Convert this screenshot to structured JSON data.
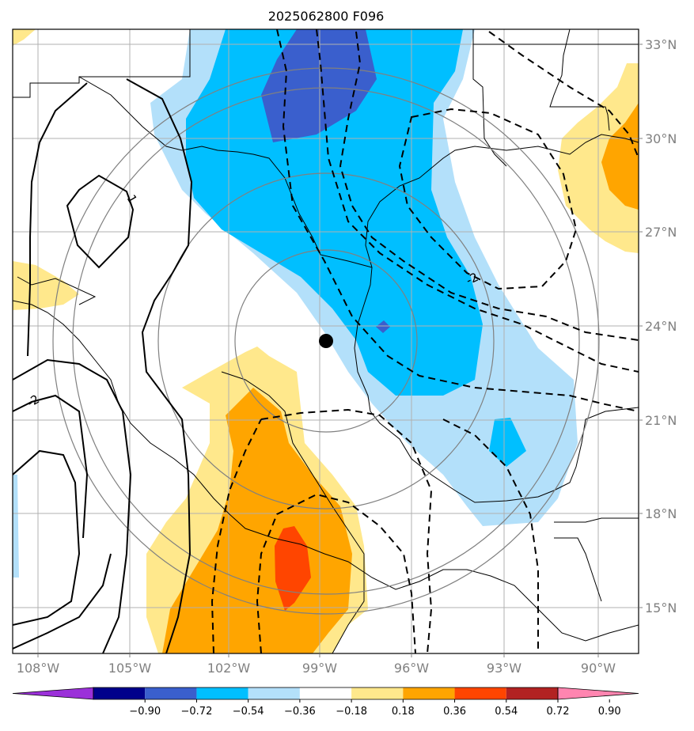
{
  "title": "2025062800 F096",
  "map": {
    "lat_labels": [
      "33°N",
      "30°N",
      "27°N",
      "24°N",
      "21°N",
      "18°N",
      "15°N"
    ],
    "lon_labels": [
      "108°W",
      "105°W",
      "102°W",
      "99°W",
      "96°W",
      "93°W",
      "90°W"
    ],
    "contour_labels": [
      "1",
      "-2",
      "-2"
    ],
    "center_marker": "storm-center-dot"
  },
  "colorbar": {
    "tick_labels": [
      "−0.90",
      "−0.72",
      "−0.54",
      "−0.36",
      "−0.18",
      "0.18",
      "0.36",
      "0.54",
      "0.72",
      "0.90"
    ],
    "colors": [
      "#9b30d9",
      "#00008b",
      "#3a5fcd",
      "#00bfff",
      "#b3e0fa",
      "#ffffff",
      "#ffe88c",
      "#ffa500",
      "#ff4500",
      "#b22222",
      "#ff85b0"
    ]
  },
  "colors": {
    "contour_positive": "#000000",
    "contour_negative": "#000000",
    "range_rings": "#808080",
    "grid": "#b0b0b0"
  }
}
